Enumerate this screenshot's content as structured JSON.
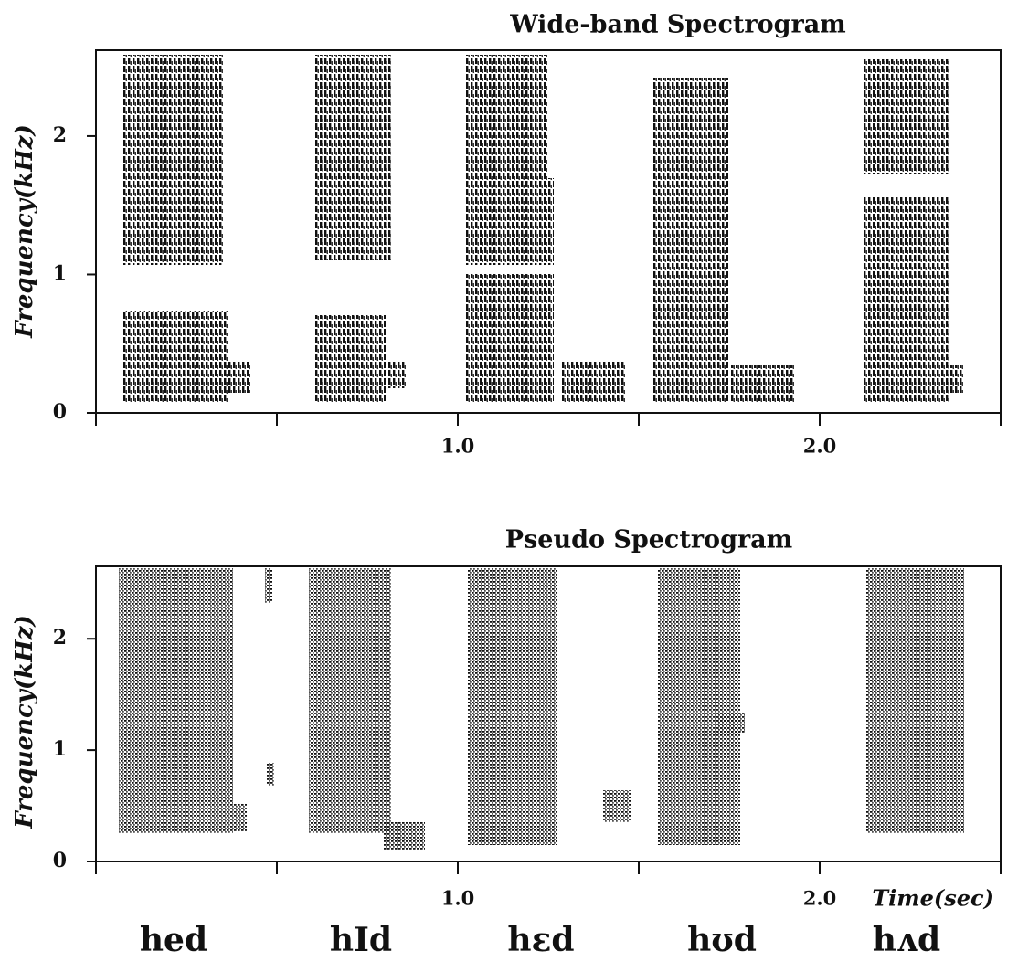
{
  "chart_data": [
    {
      "type": "spectrogram",
      "title": "Wide-band Spectrogram",
      "y_label": "Frequency(kHz)",
      "xlim": [
        0,
        2.5
      ],
      "ylim": [
        0,
        2.62
      ],
      "xticks": [
        {
          "value": 1,
          "label": "1.0"
        },
        {
          "value": 2,
          "label": "2.0"
        }
      ],
      "xminor_ticks": [
        0,
        0.5,
        1.5,
        2.5
      ],
      "yticks": [
        0,
        1,
        2
      ]
    },
    {
      "type": "spectrogram",
      "title": "Pseudo Spectrogram",
      "y_label": "Frequency(kHz)",
      "x_label": "Time(sec)",
      "xlim": [
        0,
        2.5
      ],
      "ylim": [
        0,
        2.65
      ],
      "xticks": [
        {
          "value": 1,
          "label": "1.0"
        },
        {
          "value": 2,
          "label": "2.0"
        }
      ],
      "xminor_ticks": [
        0,
        0.5,
        1.5,
        2.5
      ],
      "yticks": [
        0,
        1,
        2
      ],
      "annotations": [
        "hed",
        "hId",
        "hεd",
        "hʊd",
        "hʌd"
      ]
    }
  ]
}
